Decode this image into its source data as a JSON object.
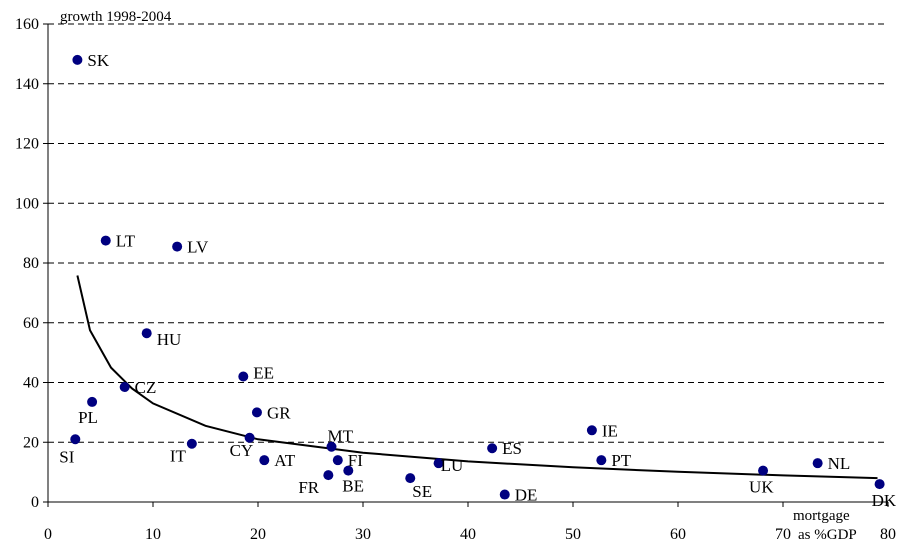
{
  "chart_data": {
    "type": "scatter",
    "title": "",
    "ylabel": "growth 1998-2004",
    "xlabel": "mortgage as %GDP",
    "xlabel_line1": "mortgage",
    "xlabel_line2": "as %GDP",
    "xlim": [
      0,
      80
    ],
    "ylim": [
      0,
      160
    ],
    "xticks": [
      0,
      10,
      20,
      30,
      40,
      50,
      60,
      70,
      80
    ],
    "yticks": [
      0,
      20,
      40,
      60,
      80,
      100,
      120,
      140,
      160
    ],
    "grid": "horizontal dashed",
    "marker_color": "#000080",
    "curve_color": "#000000",
    "points": [
      {
        "label": "SK",
        "x": 2.8,
        "y": 148
      },
      {
        "label": "LT",
        "x": 5.5,
        "y": 87.5
      },
      {
        "label": "LV",
        "x": 12.3,
        "y": 85.5
      },
      {
        "label": "HU",
        "x": 9.4,
        "y": 56.5
      },
      {
        "label": "EE",
        "x": 18.6,
        "y": 42
      },
      {
        "label": "CZ",
        "x": 7.3,
        "y": 38.5
      },
      {
        "label": "PL",
        "x": 4.2,
        "y": 33.5
      },
      {
        "label": "GR",
        "x": 19.9,
        "y": 30
      },
      {
        "label": "SI",
        "x": 2.6,
        "y": 21
      },
      {
        "label": "IT",
        "x": 13.7,
        "y": 19.5
      },
      {
        "label": "CY",
        "x": 19.2,
        "y": 21.5
      },
      {
        "label": "AT",
        "x": 20.6,
        "y": 14
      },
      {
        "label": "MT",
        "x": 27.0,
        "y": 18.5
      },
      {
        "label": "FI",
        "x": 27.6,
        "y": 14
      },
      {
        "label": "FR",
        "x": 26.7,
        "y": 9
      },
      {
        "label": "BE",
        "x": 28.6,
        "y": 10.5
      },
      {
        "label": "SE",
        "x": 34.5,
        "y": 8
      },
      {
        "label": "LU",
        "x": 37.2,
        "y": 13
      },
      {
        "label": "ES",
        "x": 42.3,
        "y": 18
      },
      {
        "label": "DE",
        "x": 43.5,
        "y": 2.5
      },
      {
        "label": "IE",
        "x": 51.8,
        "y": 24
      },
      {
        "label": "PT",
        "x": 52.7,
        "y": 14
      },
      {
        "label": "UK",
        "x": 68.1,
        "y": 10.5
      },
      {
        "label": "NL",
        "x": 73.3,
        "y": 13
      },
      {
        "label": "DK",
        "x": 79.2,
        "y": 6
      }
    ],
    "trendline": {
      "type": "logarithmic",
      "x": [
        2.8,
        4,
        6,
        8,
        10,
        15,
        20,
        30,
        40,
        50,
        60,
        70,
        79
      ],
      "y": [
        75.8,
        57.5,
        45,
        38,
        33,
        25.5,
        21,
        16.5,
        13.6,
        11.6,
        10.1,
        8.9,
        8
      ]
    }
  }
}
